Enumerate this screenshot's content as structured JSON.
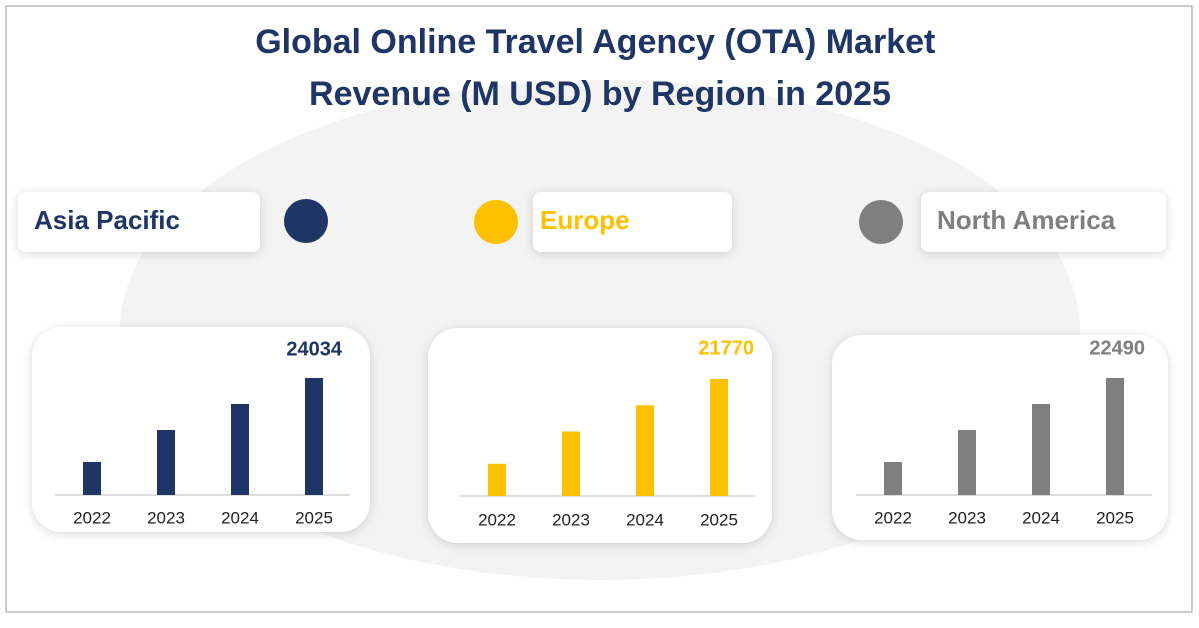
{
  "title": "Global Online Travel Agency (OTA) Market Revenue (M USD) by Region in 2025",
  "chart_data": [
    {
      "type": "bar",
      "title": "Asia Pacific",
      "color": "#1f3566",
      "categories": [
        "2022",
        "2023",
        "2024",
        "2025"
      ],
      "values": [
        6780,
        13350,
        18690,
        24034
      ]
    },
    {
      "type": "bar",
      "title": "Europe",
      "color": "#ffc000",
      "categories": [
        "2022",
        "2023",
        "2024",
        "2025"
      ],
      "values": [
        6000,
        12010,
        16890,
        21770
      ]
    },
    {
      "type": "bar",
      "title": "North America",
      "color": "#7f7f7f",
      "categories": [
        "2022",
        "2023",
        "2024",
        "2025"
      ],
      "values": [
        6340,
        12490,
        17490,
        22490
      ]
    }
  ]
}
